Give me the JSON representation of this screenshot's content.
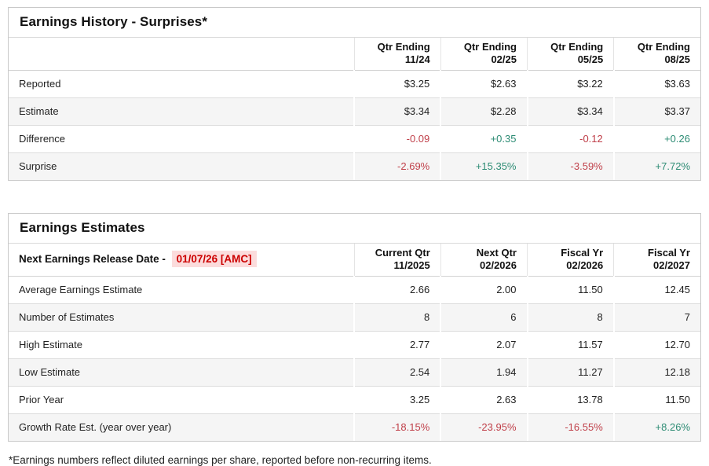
{
  "colors": {
    "positive": "#2d8c74",
    "negative": "#c0404a",
    "release_date_text": "#cc0000",
    "release_date_bg": "#fbdcdc",
    "alt_row_bg": "#f5f5f5",
    "panel_border": "#c9c9c9"
  },
  "surprises_table": {
    "title": "Earnings History - Surprises*",
    "columns": [
      {
        "line1": "Qtr Ending",
        "line2": "11/24"
      },
      {
        "line1": "Qtr Ending",
        "line2": "02/25"
      },
      {
        "line1": "Qtr Ending",
        "line2": "05/25"
      },
      {
        "line1": "Qtr Ending",
        "line2": "08/25"
      }
    ],
    "rows": [
      {
        "label": "Reported",
        "values": [
          {
            "text": "$3.25",
            "tone": ""
          },
          {
            "text": "$2.63",
            "tone": ""
          },
          {
            "text": "$3.22",
            "tone": ""
          },
          {
            "text": "$3.63",
            "tone": ""
          }
        ]
      },
      {
        "label": "Estimate",
        "values": [
          {
            "text": "$3.34",
            "tone": ""
          },
          {
            "text": "$2.28",
            "tone": ""
          },
          {
            "text": "$3.34",
            "tone": ""
          },
          {
            "text": "$3.37",
            "tone": ""
          }
        ]
      },
      {
        "label": "Difference",
        "values": [
          {
            "text": "-0.09",
            "tone": "neg"
          },
          {
            "text": "+0.35",
            "tone": "pos"
          },
          {
            "text": "-0.12",
            "tone": "neg"
          },
          {
            "text": "+0.26",
            "tone": "pos"
          }
        ]
      },
      {
        "label": "Surprise",
        "values": [
          {
            "text": "-2.69%",
            "tone": "neg"
          },
          {
            "text": "+15.35%",
            "tone": "pos"
          },
          {
            "text": "-3.59%",
            "tone": "neg"
          },
          {
            "text": "+7.72%",
            "tone": "pos"
          }
        ]
      }
    ]
  },
  "estimates_table": {
    "title": "Earnings Estimates",
    "release_date_label": "Next Earnings Release Date -",
    "release_date_value": "01/07/26 [AMC]",
    "columns": [
      {
        "line1": "Current Qtr",
        "line2": "11/2025"
      },
      {
        "line1": "Next Qtr",
        "line2": "02/2026"
      },
      {
        "line1": "Fiscal Yr",
        "line2": "02/2026"
      },
      {
        "line1": "Fiscal Yr",
        "line2": "02/2027"
      }
    ],
    "rows": [
      {
        "label": "Average Earnings Estimate",
        "values": [
          {
            "text": "2.66",
            "tone": ""
          },
          {
            "text": "2.00",
            "tone": ""
          },
          {
            "text": "11.50",
            "tone": ""
          },
          {
            "text": "12.45",
            "tone": ""
          }
        ]
      },
      {
        "label": "Number of Estimates",
        "values": [
          {
            "text": "8",
            "tone": ""
          },
          {
            "text": "6",
            "tone": ""
          },
          {
            "text": "8",
            "tone": ""
          },
          {
            "text": "7",
            "tone": ""
          }
        ]
      },
      {
        "label": "High Estimate",
        "values": [
          {
            "text": "2.77",
            "tone": ""
          },
          {
            "text": "2.07",
            "tone": ""
          },
          {
            "text": "11.57",
            "tone": ""
          },
          {
            "text": "12.70",
            "tone": ""
          }
        ]
      },
      {
        "label": "Low Estimate",
        "values": [
          {
            "text": "2.54",
            "tone": ""
          },
          {
            "text": "1.94",
            "tone": ""
          },
          {
            "text": "11.27",
            "tone": ""
          },
          {
            "text": "12.18",
            "tone": ""
          }
        ]
      },
      {
        "label": "Prior Year",
        "values": [
          {
            "text": "3.25",
            "tone": ""
          },
          {
            "text": "2.63",
            "tone": ""
          },
          {
            "text": "13.78",
            "tone": ""
          },
          {
            "text": "11.50",
            "tone": ""
          }
        ]
      },
      {
        "label": "Growth Rate Est. (year over year)",
        "values": [
          {
            "text": "-18.15%",
            "tone": "neg"
          },
          {
            "text": "-23.95%",
            "tone": "neg"
          },
          {
            "text": "-16.55%",
            "tone": "neg"
          },
          {
            "text": "+8.26%",
            "tone": "pos"
          }
        ]
      }
    ]
  },
  "footnote": "*Earnings numbers reflect diluted earnings per share, reported before non-recurring items."
}
